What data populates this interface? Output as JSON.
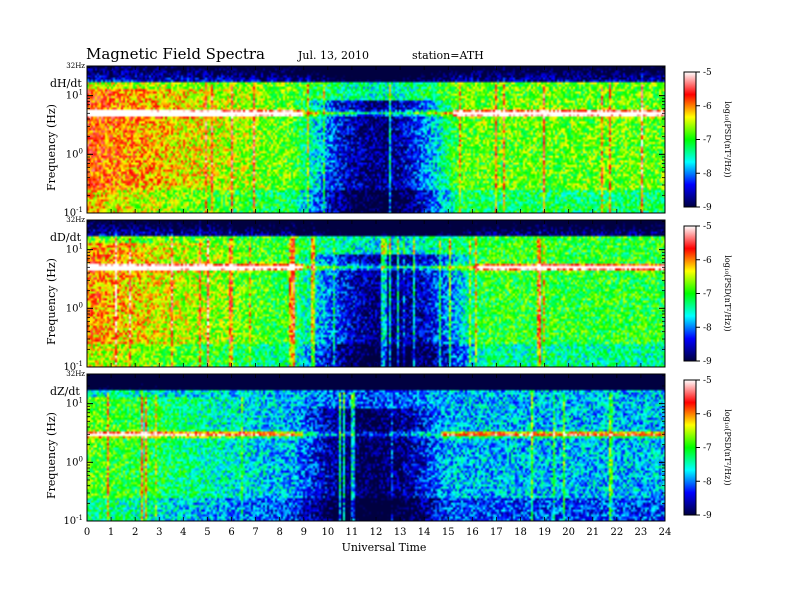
{
  "header": {
    "title": "Magnetic  Field  Spectra",
    "date": "Jul.  13, 2010",
    "station": "station=ATH"
  },
  "chart_data": {
    "type": "heatmap",
    "x_axis": {
      "label": "Universal Time",
      "range": [
        0,
        24
      ],
      "ticks": [
        "0",
        "1",
        "2",
        "3",
        "4",
        "5",
        "6",
        "7",
        "8",
        "9",
        "10",
        "11",
        "12",
        "13",
        "14",
        "15",
        "16",
        "17",
        "18",
        "19",
        "20",
        "21",
        "22",
        "23",
        "24"
      ]
    },
    "y_axis": {
      "label": "Frequency  (Hz)",
      "scale": "log",
      "range_hz": [
        0.1,
        32
      ],
      "top_label": "32Hz",
      "ticks": [
        {
          "value": 10,
          "mantissa": "10",
          "exp": "1"
        },
        {
          "value": 1,
          "mantissa": "10",
          "exp": "0"
        },
        {
          "value": 0.1,
          "mantissa": "10",
          "exp": "-1"
        }
      ]
    },
    "colorbar": {
      "label": "log₁₀(PSD(nT²/Hz))",
      "range": [
        -9,
        -5
      ],
      "ticks": [
        "-5",
        "-6",
        "-7",
        "-8",
        "-9"
      ],
      "colors": [
        "#ffffff",
        "#ff0000",
        "#ffff00",
        "#00ff00",
        "#00ffff",
        "#0000ff",
        "#000040"
      ]
    },
    "panels": [
      {
        "name": "dH/dt",
        "line_hz": 5,
        "line_strength": 0.95,
        "base_level": 0.55,
        "quiet_window": [
          8.5,
          15.5
        ],
        "quiet_depth": 0.5
      },
      {
        "name": "dD/dt",
        "line_hz": 5,
        "line_strength": 0.85,
        "base_level": 0.5,
        "quiet_window": [
          8.5,
          16.5
        ],
        "quiet_depth": 0.45
      },
      {
        "name": "dZ/dt",
        "line_hz": 3,
        "line_strength": 0.6,
        "base_level": 0.3,
        "quiet_window": [
          8.5,
          15
        ],
        "quiet_depth": 0.3
      }
    ]
  }
}
